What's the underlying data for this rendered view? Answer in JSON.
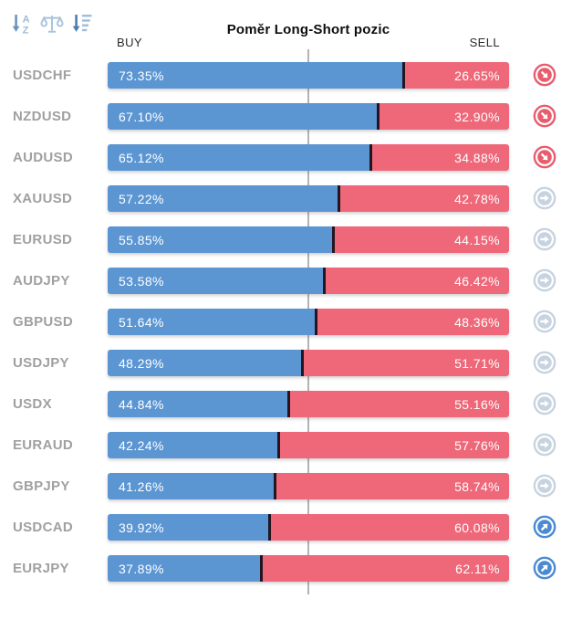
{
  "header": {
    "title": "Poměr Long-Short pozic",
    "buy_label": "BUY",
    "sell_label": "SELL",
    "sort_icons": [
      "sort-alphabetical-icon",
      "balance-scale-icon",
      "sort-amount-desc-icon"
    ]
  },
  "colors": {
    "buy_bar": "#5b96d3",
    "sell_bar": "#ee6879",
    "bar_divider": "#241520",
    "pair_label": "#a0a0a0",
    "center_line": "#b3b3b3",
    "trend_down_icon": "#e85d6e",
    "trend_neutral_icon": "#c7d3df",
    "trend_up_icon": "#4a8ad3"
  },
  "chart_data": {
    "type": "bar",
    "orientation": "horizontal",
    "stacked": true,
    "title": "Poměr Long-Short pozic",
    "categories": [
      "USDCHF",
      "NZDUSD",
      "AUDUSD",
      "XAUUSD",
      "EURUSD",
      "AUDJPY",
      "GBPUSD",
      "USDJPY",
      "USDX",
      "EURAUD",
      "GBPJPY",
      "USDCAD",
      "EURJPY"
    ],
    "series": [
      {
        "name": "BUY",
        "values": [
          73.35,
          67.1,
          65.12,
          57.22,
          55.85,
          53.58,
          51.64,
          48.29,
          44.84,
          42.24,
          41.26,
          39.92,
          37.89
        ]
      },
      {
        "name": "SELL",
        "values": [
          26.65,
          32.9,
          34.88,
          42.78,
          44.15,
          46.42,
          48.36,
          51.71,
          55.16,
          57.76,
          58.74,
          60.08,
          62.11
        ]
      }
    ],
    "xlim": [
      0,
      100
    ],
    "grid": false,
    "annotations": "vertical reference line at 50%"
  },
  "rows": [
    {
      "pair": "USDCHF",
      "buy": "73.35%",
      "sell": "26.65%",
      "trend": "down"
    },
    {
      "pair": "NZDUSD",
      "buy": "67.10%",
      "sell": "32.90%",
      "trend": "down"
    },
    {
      "pair": "AUDUSD",
      "buy": "65.12%",
      "sell": "34.88%",
      "trend": "down"
    },
    {
      "pair": "XAUUSD",
      "buy": "57.22%",
      "sell": "42.78%",
      "trend": "neutral"
    },
    {
      "pair": "EURUSD",
      "buy": "55.85%",
      "sell": "44.15%",
      "trend": "neutral"
    },
    {
      "pair": "AUDJPY",
      "buy": "53.58%",
      "sell": "46.42%",
      "trend": "neutral"
    },
    {
      "pair": "GBPUSD",
      "buy": "51.64%",
      "sell": "48.36%",
      "trend": "neutral"
    },
    {
      "pair": "USDJPY",
      "buy": "48.29%",
      "sell": "51.71%",
      "trend": "neutral"
    },
    {
      "pair": "USDX",
      "buy": "44.84%",
      "sell": "55.16%",
      "trend": "neutral"
    },
    {
      "pair": "EURAUD",
      "buy": "42.24%",
      "sell": "57.76%",
      "trend": "neutral"
    },
    {
      "pair": "GBPJPY",
      "buy": "41.26%",
      "sell": "58.74%",
      "trend": "neutral"
    },
    {
      "pair": "USDCAD",
      "buy": "39.92%",
      "sell": "60.08%",
      "trend": "up"
    },
    {
      "pair": "EURJPY",
      "buy": "37.89%",
      "sell": "62.11%",
      "trend": "up"
    }
  ]
}
